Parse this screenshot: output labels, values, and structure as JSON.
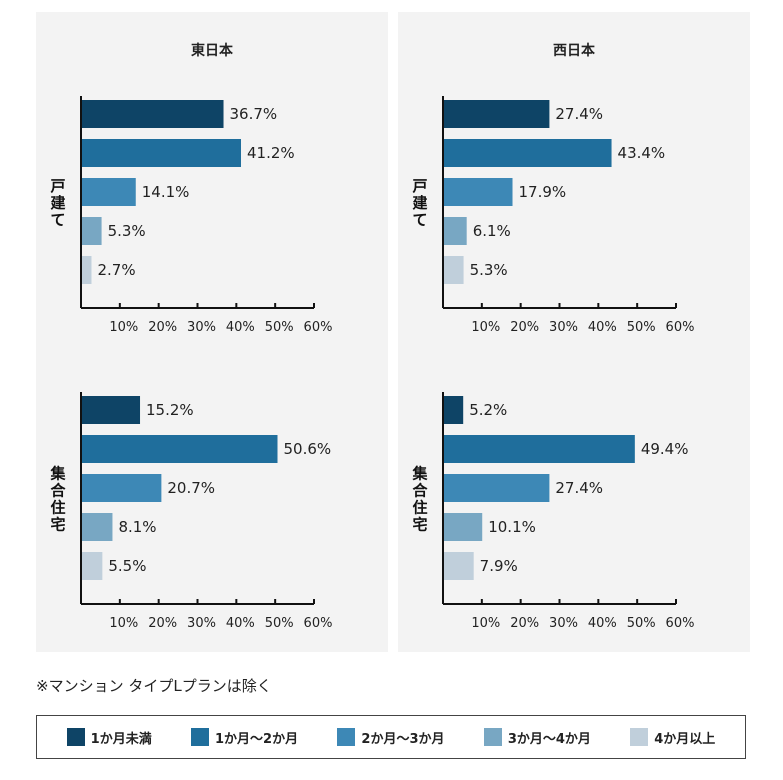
{
  "panels": [
    {
      "title": "東日本"
    },
    {
      "title": "西日本"
    }
  ],
  "note": "※マンション タイプLプランは除く",
  "colors": [
    "#0e4466",
    "#1f6e9c",
    "#3d88b6",
    "#78a7c3",
    "#c0cfdb"
  ],
  "legend": [
    "1か月未満",
    "1か月～2か月",
    "2か月～3か月",
    "3か月～4か月",
    "4か月以上"
  ],
  "chart_data": [
    {
      "type": "bar",
      "panel": "東日本",
      "group": "戸建て",
      "categories": [
        "1か月未満",
        "1か月～2か月",
        "2か月～3か月",
        "3か月～4か月",
        "4か月以上"
      ],
      "values": [
        36.7,
        41.2,
        14.1,
        5.3,
        2.7
      ],
      "labels": [
        "36.7%",
        "41.2%",
        "14.1%",
        "5.3%",
        "2.7%"
      ],
      "xlim": [
        0,
        60
      ],
      "ticks": [
        "10%",
        "20%",
        "30%",
        "40%",
        "50%",
        "60%"
      ]
    },
    {
      "type": "bar",
      "panel": "西日本",
      "group": "戸建て",
      "categories": [
        "1か月未満",
        "1か月～2か月",
        "2か月～3か月",
        "3か月～4か月",
        "4か月以上"
      ],
      "values": [
        27.4,
        43.4,
        17.9,
        6.1,
        5.3
      ],
      "labels": [
        "27.4%",
        "43.4%",
        "17.9%",
        "6.1%",
        "5.3%"
      ],
      "xlim": [
        0,
        60
      ],
      "ticks": [
        "10%",
        "20%",
        "30%",
        "40%",
        "50%",
        "60%"
      ]
    },
    {
      "type": "bar",
      "panel": "東日本",
      "group": "集合住宅",
      "categories": [
        "1か月未満",
        "1か月～2か月",
        "2か月～3か月",
        "3か月～4か月",
        "4か月以上"
      ],
      "values": [
        15.2,
        50.6,
        20.7,
        8.1,
        5.5
      ],
      "labels": [
        "15.2%",
        "50.6%",
        "20.7%",
        "8.1%",
        "5.5%"
      ],
      "xlim": [
        0,
        60
      ],
      "ticks": [
        "10%",
        "20%",
        "30%",
        "40%",
        "50%",
        "60%"
      ]
    },
    {
      "type": "bar",
      "panel": "西日本",
      "group": "集合住宅",
      "categories": [
        "1か月未満",
        "1か月～2か月",
        "2か月～3か月",
        "3か月～4か月",
        "4か月以上"
      ],
      "values": [
        5.2,
        49.4,
        27.4,
        10.1,
        7.9
      ],
      "labels": [
        "5.2%",
        "49.4%",
        "27.4%",
        "10.1%",
        "7.9%"
      ],
      "xlim": [
        0,
        60
      ],
      "ticks": [
        "10%",
        "20%",
        "30%",
        "40%",
        "50%",
        "60%"
      ]
    }
  ]
}
